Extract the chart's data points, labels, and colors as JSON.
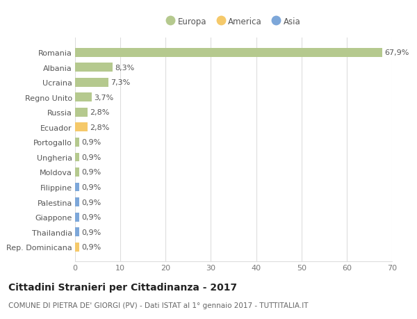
{
  "title": "Cittadini Stranieri per Cittadinanza - 2017",
  "subtitle": "COMUNE DI PIETRA DE' GIORGI (PV) - Dati ISTAT al 1° gennaio 2017 - TUTTITALIA.IT",
  "categories": [
    "Romania",
    "Albania",
    "Ucraina",
    "Regno Unito",
    "Russia",
    "Ecuador",
    "Portogallo",
    "Ungheria",
    "Moldova",
    "Filippine",
    "Palestina",
    "Giappone",
    "Thailandia",
    "Rep. Dominicana"
  ],
  "values": [
    67.9,
    8.3,
    7.3,
    3.7,
    2.8,
    2.8,
    0.9,
    0.9,
    0.9,
    0.9,
    0.9,
    0.9,
    0.9,
    0.9
  ],
  "labels": [
    "67,9%",
    "8,3%",
    "7,3%",
    "3,7%",
    "2,8%",
    "2,8%",
    "0,9%",
    "0,9%",
    "0,9%",
    "0,9%",
    "0,9%",
    "0,9%",
    "0,9%",
    "0,9%"
  ],
  "colors": [
    "#b5c98e",
    "#b5c98e",
    "#b5c98e",
    "#b5c98e",
    "#b5c98e",
    "#f5c96a",
    "#b5c98e",
    "#b5c98e",
    "#b5c98e",
    "#7da7d9",
    "#7da7d9",
    "#7da7d9",
    "#7da7d9",
    "#f5c96a"
  ],
  "legend_labels": [
    "Europa",
    "America",
    "Asia"
  ],
  "legend_colors": [
    "#b5c98e",
    "#f5c96a",
    "#7da7d9"
  ],
  "xlim": [
    0,
    70
  ],
  "xticks": [
    0,
    10,
    20,
    30,
    40,
    50,
    60,
    70
  ],
  "background_color": "#ffffff",
  "grid_color": "#dddddd",
  "bar_height": 0.6,
  "title_fontsize": 10,
  "subtitle_fontsize": 7.5,
  "label_fontsize": 8,
  "tick_fontsize": 8,
  "legend_fontsize": 8.5
}
